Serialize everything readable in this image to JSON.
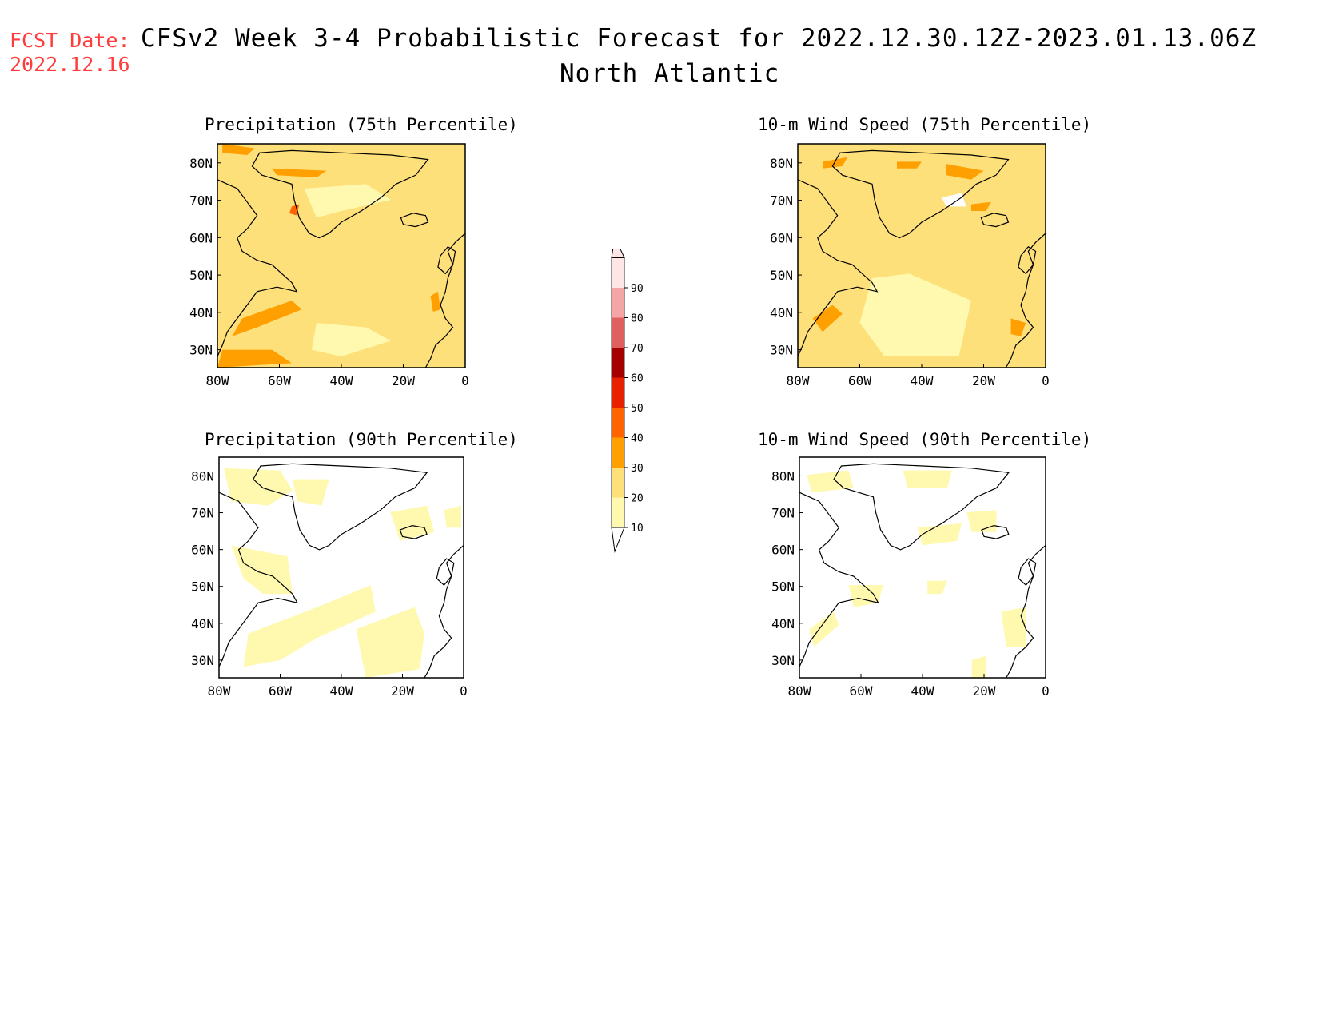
{
  "header": {
    "fcst_label": "FCST Date:",
    "fcst_date": "2022.12.16",
    "title": "CFSv2 Week 3-4 Probabilistic Forecast for 2022.12.30.12Z-2023.01.13.06Z",
    "region": "North Atlantic"
  },
  "panels": [
    {
      "title": "Precipitation (75th Percentile)",
      "base_fill": "#fde07a"
    },
    {
      "title": "10-m Wind Speed (75th Percentile)",
      "base_fill": "#fde07a"
    },
    {
      "title": "Precipitation (90th Percentile)",
      "base_fill": "#ffffff"
    },
    {
      "title": "10-m Wind Speed (90th Percentile)",
      "base_fill": "#ffffff"
    }
  ],
  "axes": {
    "lat_labels": [
      "80N",
      "70N",
      "60N",
      "50N",
      "40N",
      "30N"
    ],
    "lon_labels": [
      "80W",
      "60W",
      "40W",
      "20W",
      "0"
    ]
  },
  "colorbar": {
    "levels": [
      "10",
      "20",
      "30",
      "40",
      "50",
      "60",
      "70",
      "80",
      "90"
    ],
    "colors": [
      "#fff9b0",
      "#fde07a",
      "#ff9f00",
      "#ff6400",
      "#e62000",
      "#a50000",
      "#e06060",
      "#f5a5a5",
      "#ffe6e6"
    ]
  }
}
